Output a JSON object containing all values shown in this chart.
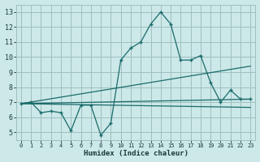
{
  "xlabel": "Humidex (Indice chaleur)",
  "bg_color": "#cce8e8",
  "grid_color": "#9fbfbf",
  "line_color": "#1a6b6b",
  "xlim": [
    -0.5,
    23.5
  ],
  "ylim": [
    4.5,
    13.5
  ],
  "xticks": [
    0,
    1,
    2,
    3,
    4,
    5,
    6,
    7,
    8,
    9,
    10,
    11,
    12,
    13,
    14,
    15,
    16,
    17,
    18,
    19,
    20,
    21,
    22,
    23
  ],
  "yticks": [
    5,
    6,
    7,
    8,
    9,
    10,
    11,
    12,
    13
  ],
  "main_x": [
    0,
    1,
    2,
    3,
    4,
    5,
    6,
    7,
    8,
    9,
    10,
    11,
    12,
    13,
    14,
    15,
    16,
    17,
    18,
    19,
    20,
    21,
    22,
    23
  ],
  "main_y": [
    6.9,
    7.0,
    6.3,
    6.4,
    6.3,
    5.1,
    6.8,
    6.8,
    4.8,
    5.6,
    9.8,
    10.6,
    11.0,
    12.2,
    13.0,
    12.2,
    9.8,
    9.8,
    10.1,
    8.3,
    7.0,
    7.8,
    7.2,
    7.2
  ],
  "line1_x": [
    0,
    23
  ],
  "line1_y": [
    6.9,
    7.2
  ],
  "line2_x": [
    0,
    23
  ],
  "line2_y": [
    6.9,
    9.4
  ],
  "line3_x": [
    0,
    23
  ],
  "line3_y": [
    6.9,
    6.65
  ]
}
